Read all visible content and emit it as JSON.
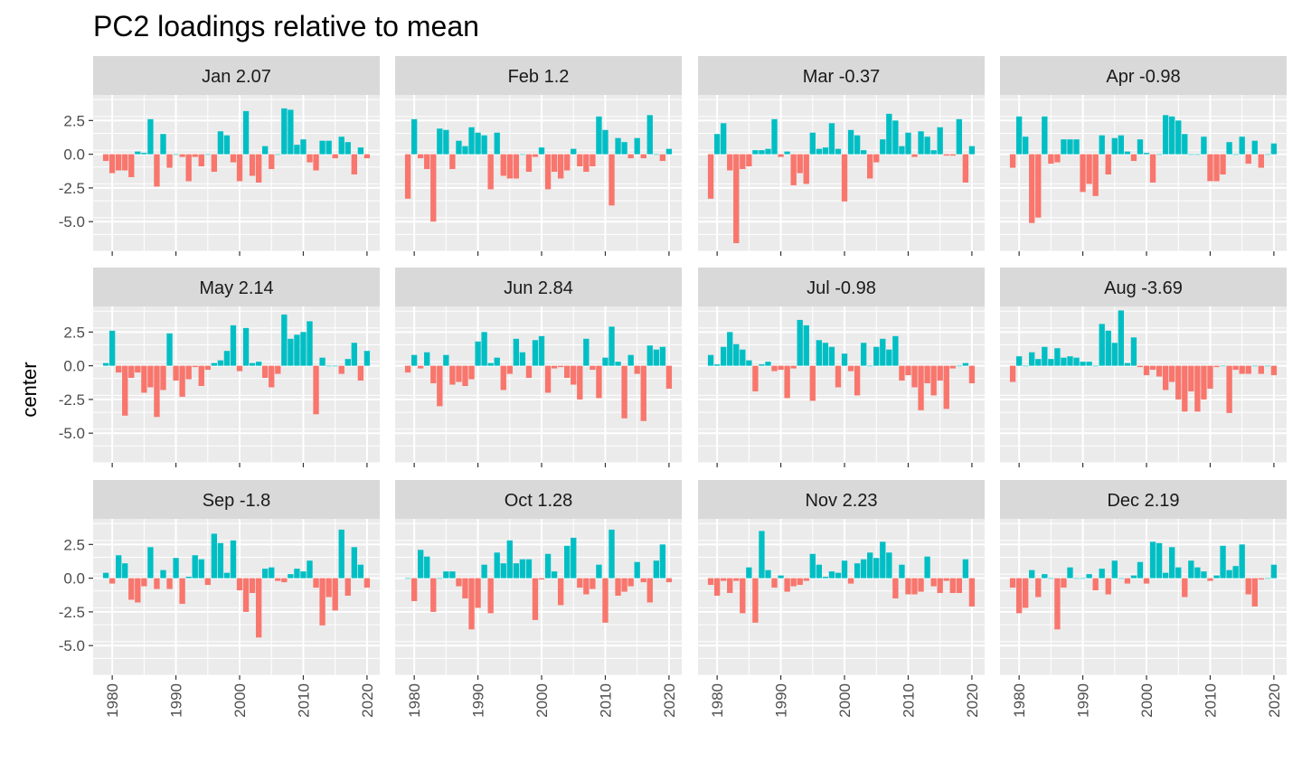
{
  "chart_data": {
    "type": "bar",
    "title": "PC2 loadings relative to mean",
    "xlabel": "",
    "ylabel": "center",
    "xlim": [
      1977,
      2022
    ],
    "ylim": [
      -7.2,
      4.4
    ],
    "yticks": [
      2.5,
      0.0,
      -2.5,
      -5.0
    ],
    "ytick_labels": [
      "2.5",
      "0.0",
      "-2.5",
      "-5.0"
    ],
    "xticks": [
      1980,
      1990,
      2000,
      2010,
      2020
    ],
    "xtick_labels": [
      "1980",
      "1990",
      "2000",
      "2010",
      "2020"
    ],
    "years": [
      1979,
      1980,
      1981,
      1982,
      1983,
      1984,
      1985,
      1986,
      1987,
      1988,
      1989,
      1990,
      1991,
      1992,
      1993,
      1994,
      1995,
      1996,
      1997,
      1998,
      1999,
      2000,
      2001,
      2002,
      2003,
      2004,
      2005,
      2006,
      2007,
      2008,
      2009,
      2010,
      2011,
      2012,
      2013,
      2014,
      2015,
      2016,
      2017,
      2018,
      2019,
      2020
    ],
    "colors": {
      "positive": "#00BFC4",
      "negative": "#F8766D",
      "panel_bg": "#EBEBEB",
      "strip_bg": "#D9D9D9",
      "grid": "#FFFFFF"
    },
    "grid": true,
    "legend": "none",
    "panels": [
      {
        "label": "Jan 2.07",
        "values": [
          -0.5,
          -1.4,
          -1.2,
          -1.2,
          -1.7,
          0.2,
          0.1,
          2.6,
          -2.4,
          1.5,
          -1.0,
          0.0,
          -0.2,
          -2.0,
          -0.2,
          -0.9,
          0.0,
          -1.3,
          1.7,
          1.4,
          -0.6,
          -2.0,
          3.2,
          -1.6,
          -2.1,
          0.6,
          -1.1,
          0.0,
          3.4,
          3.3,
          0.7,
          1.1,
          -0.6,
          -1.2,
          1.0,
          1.0,
          -0.3,
          1.3,
          0.9,
          -1.5,
          0.5,
          -0.3
        ]
      },
      {
        "label": "Feb 1.2",
        "values": [
          -3.3,
          2.6,
          -0.3,
          -1.1,
          -5.0,
          1.9,
          1.8,
          -1.1,
          1.0,
          0.6,
          2.0,
          1.6,
          1.4,
          -2.6,
          1.6,
          -1.6,
          -1.8,
          -1.8,
          0.0,
          -1.3,
          -0.2,
          0.5,
          -2.6,
          -1.3,
          -1.8,
          -1.2,
          0.4,
          -0.9,
          -1.3,
          -0.9,
          2.8,
          1.8,
          -3.8,
          1.2,
          0.9,
          -0.3,
          1.2,
          -0.3,
          2.9,
          0.0,
          -0.5,
          0.4
        ]
      },
      {
        "label": "Mar -0.37",
        "values": [
          -3.3,
          1.5,
          2.3,
          -1.2,
          -6.6,
          -1.1,
          -0.9,
          0.3,
          0.3,
          0.4,
          2.6,
          -0.2,
          0.2,
          -2.3,
          -1.4,
          -2.2,
          1.6,
          0.4,
          0.5,
          2.3,
          0.4,
          -3.5,
          1.8,
          1.4,
          0.3,
          -1.8,
          -0.6,
          1.1,
          3.0,
          2.5,
          0.6,
          1.6,
          -0.2,
          1.7,
          1.3,
          0.3,
          2.0,
          -0.1,
          -0.1,
          2.6,
          -2.1,
          0.6
        ]
      },
      {
        "label": "Apr -0.98",
        "values": [
          -1.0,
          2.8,
          1.3,
          -5.1,
          -4.7,
          2.8,
          -0.7,
          -0.6,
          1.1,
          1.1,
          1.1,
          -2.8,
          -2.2,
          -3.1,
          1.4,
          -1.5,
          1.2,
          1.4,
          0.2,
          -0.5,
          1.1,
          0.1,
          -2.1,
          0.0,
          2.9,
          2.8,
          2.5,
          1.5,
          0.0,
          0.0,
          1.3,
          -2.0,
          -2.0,
          -1.5,
          0.9,
          0.0,
          1.3,
          -0.7,
          1.0,
          -1.0,
          0.0,
          0.8
        ]
      },
      {
        "label": "May 2.14",
        "values": [
          0.2,
          2.6,
          -0.5,
          -3.7,
          -0.9,
          -0.5,
          -2.0,
          -1.6,
          -3.8,
          -1.8,
          2.4,
          -1.1,
          -2.3,
          -1.0,
          -0.1,
          -1.5,
          -0.3,
          0.2,
          0.4,
          1.1,
          3.0,
          -0.4,
          2.8,
          0.2,
          0.3,
          -0.9,
          -1.6,
          -0.6,
          3.8,
          2.0,
          2.3,
          2.5,
          3.3,
          -3.6,
          0.6,
          0.0,
          0.0,
          -0.6,
          0.5,
          1.7,
          -1.1,
          1.1
        ]
      },
      {
        "label": "Jun 2.84",
        "values": [
          -0.5,
          0.8,
          -0.2,
          1.0,
          -1.3,
          -3.0,
          0.8,
          -1.4,
          -1.2,
          -1.5,
          -1.0,
          1.8,
          2.5,
          0.2,
          0.6,
          -1.8,
          -0.6,
          2.0,
          1.0,
          -0.9,
          1.9,
          2.2,
          -2.0,
          -0.2,
          -0.1,
          -0.9,
          -1.4,
          -2.5,
          2.0,
          -0.3,
          -2.4,
          0.6,
          2.9,
          0.3,
          -3.9,
          0.8,
          -0.6,
          -4.1,
          1.5,
          1.2,
          1.4,
          -1.7
        ]
      },
      {
        "label": "Jul -0.98",
        "values": [
          0.8,
          0.1,
          1.4,
          2.5,
          1.6,
          1.2,
          0.4,
          -1.9,
          0.1,
          0.3,
          -0.4,
          -0.3,
          -2.4,
          -0.2,
          3.4,
          3.0,
          -2.6,
          1.9,
          1.7,
          1.4,
          -1.6,
          0.9,
          -0.4,
          -2.2,
          1.7,
          0.0,
          1.4,
          2.0,
          1.2,
          2.2,
          -1.1,
          -0.7,
          -1.6,
          -3.3,
          -1.3,
          -2.2,
          -1.1,
          -3.2,
          -0.2,
          0.0,
          0.2,
          -1.3
        ]
      },
      {
        "label": "Aug -3.69",
        "values": [
          -1.2,
          0.7,
          0.0,
          1.0,
          0.5,
          1.4,
          0.5,
          1.3,
          0.6,
          0.7,
          0.6,
          0.3,
          0.3,
          0.0,
          3.1,
          2.6,
          1.7,
          4.1,
          0.2,
          2.1,
          -0.1,
          -0.7,
          -0.3,
          -0.8,
          -1.8,
          -1.2,
          -2.5,
          -3.4,
          -1.9,
          -3.4,
          -2.5,
          -1.7,
          -0.1,
          0.0,
          -3.5,
          -0.3,
          -0.6,
          -0.6,
          0.0,
          -0.6,
          0.0,
          -0.7
        ]
      },
      {
        "label": "Sep -1.8",
        "values": [
          0.4,
          -0.4,
          1.7,
          1.1,
          -1.6,
          -1.8,
          -0.6,
          2.3,
          -0.8,
          0.6,
          -0.8,
          1.5,
          -1.9,
          0.1,
          1.7,
          1.4,
          -0.5,
          3.3,
          2.6,
          0.4,
          2.8,
          -0.9,
          -2.5,
          -1.1,
          -4.4,
          0.7,
          0.8,
          -0.2,
          -0.3,
          0.3,
          0.7,
          0.5,
          1.3,
          -0.7,
          -3.5,
          -1.4,
          -2.4,
          3.6,
          -1.3,
          2.3,
          1.0,
          -0.7
        ]
      },
      {
        "label": "Oct 1.28",
        "values": [
          0.0,
          -1.7,
          2.1,
          1.6,
          -2.5,
          0.0,
          0.5,
          0.5,
          -0.6,
          -1.5,
          -3.8,
          -2.2,
          1.0,
          -2.6,
          1.9,
          1.1,
          2.8,
          1.1,
          1.4,
          1.4,
          -3.1,
          -0.1,
          1.8,
          0.5,
          -2.0,
          2.4,
          3.0,
          -0.7,
          -1.2,
          -0.8,
          1.0,
          -3.3,
          3.6,
          -1.3,
          -1.0,
          -0.6,
          1.2,
          -0.3,
          -1.8,
          1.3,
          2.5,
          -0.3
        ]
      },
      {
        "label": "Nov 2.23",
        "values": [
          -0.5,
          -1.3,
          -0.2,
          -1.1,
          -0.2,
          -2.6,
          0.8,
          -3.3,
          3.5,
          0.6,
          -0.7,
          0.2,
          -1.0,
          -0.6,
          -0.5,
          -0.2,
          1.8,
          1.0,
          0.1,
          0.5,
          0.4,
          1.3,
          -0.4,
          1.1,
          1.4,
          1.9,
          1.5,
          2.7,
          1.9,
          -1.5,
          1.0,
          -1.2,
          -1.2,
          -1.0,
          1.6,
          -0.6,
          -1.1,
          -0.2,
          -1.1,
          -1.1,
          1.4,
          -2.1
        ]
      },
      {
        "label": "Dec 2.19",
        "values": [
          -0.7,
          -2.6,
          -2.2,
          0.6,
          -1.4,
          0.3,
          0.0,
          -3.8,
          -0.7,
          0.8,
          0.0,
          0.0,
          0.3,
          -0.9,
          0.7,
          -1.2,
          1.3,
          0.0,
          -0.4,
          0.2,
          1.2,
          -0.4,
          2.7,
          2.6,
          0.4,
          2.3,
          0.8,
          -1.4,
          1.3,
          0.8,
          0.5,
          -0.2,
          0.2,
          2.4,
          0.6,
          0.9,
          2.5,
          -1.2,
          -2.1,
          -0.1,
          0.0,
          1.0
        ]
      }
    ]
  }
}
